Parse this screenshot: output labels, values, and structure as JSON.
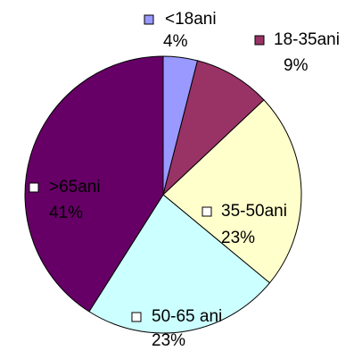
{
  "chart_data": {
    "type": "pie",
    "categories": [
      "<18ani",
      "18-35ani",
      "35-50ani",
      "50-65 ani",
      ">65ani"
    ],
    "values": [
      4,
      9,
      23,
      23,
      41
    ],
    "value_labels": [
      "4%",
      "9%",
      "23%",
      "23%",
      "41%"
    ],
    "colors": [
      "#9999ff",
      "#993366",
      "#ffffcc",
      "#ccffff",
      "#660066"
    ]
  }
}
